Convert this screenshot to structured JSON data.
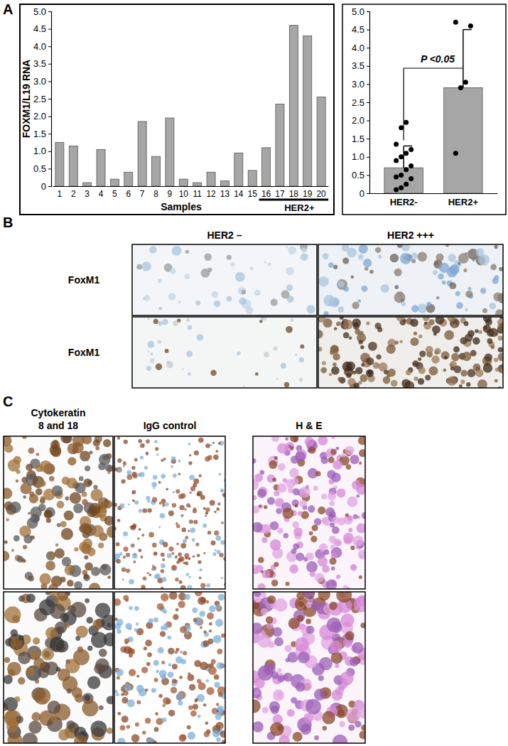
{
  "chart_data": [
    {
      "type": "bar",
      "y_label": "FOXM1/L19 RNA",
      "x_label": "Samples",
      "categories": [
        "1",
        "2",
        "3",
        "4",
        "5",
        "6",
        "7",
        "8",
        "9",
        "10",
        "11",
        "12",
        "13",
        "14",
        "15",
        "16",
        "17",
        "18",
        "19",
        "20"
      ],
      "values": [
        1.25,
        1.15,
        0.1,
        1.05,
        0.2,
        0.4,
        1.85,
        0.85,
        1.95,
        0.2,
        0.1,
        0.4,
        0.15,
        0.95,
        0.45,
        1.1,
        2.35,
        4.6,
        4.3,
        2.55
      ],
      "color": "#a6a6a6",
      "ylim": [
        0,
        5
      ],
      "yticks": [
        0,
        0.5,
        {
          "value": 1,
          "label": "1.0"
        },
        1.5,
        {
          "value": 2,
          "label": "2.0"
        },
        2.5,
        {
          "value": 3,
          "label": "3.0"
        },
        3.5,
        {
          "value": 4,
          "label": "4.0"
        },
        4.5,
        {
          "value": 5,
          "label": "5.0"
        }
      ],
      "annotations": [
        {
          "text": "HER2+",
          "from": "16",
          "to": "20"
        }
      ]
    },
    {
      "type": "bar",
      "categories": [
        "HER2-",
        "HER2+"
      ],
      "values": [
        0.7,
        2.9
      ],
      "errors": [
        0.6,
        1.6
      ],
      "points": [
        [
          0.1,
          0.15,
          0.25,
          0.4,
          0.45,
          0.5,
          0.65,
          0.75,
          0.9,
          1.0,
          1.1,
          1.2,
          1.35,
          1.8,
          1.95
        ],
        [
          1.1,
          2.9,
          3.05,
          4.6,
          4.7
        ]
      ],
      "color": "#a6a6a6",
      "ylim": [
        0,
        5
      ],
      "yticks": [
        0,
        0.5,
        {
          "value": 1,
          "label": "1.0"
        },
        1.5,
        {
          "value": 2,
          "label": "2.0"
        },
        2.5,
        {
          "value": 3,
          "label": "3.0"
        },
        3.5,
        {
          "value": 4,
          "label": "4.0"
        },
        4.5,
        {
          "value": 5,
          "label": "5.0"
        }
      ],
      "annotations": [
        {
          "text": "P <0.05",
          "from": "HER2-",
          "to": "HER2+"
        }
      ]
    }
  ],
  "panels": {
    "labels": [
      "A",
      "B",
      "C"
    ],
    "B": {
      "columns": [
        "HER2 –",
        "HER2 +++"
      ],
      "rows": [
        "FoxM1",
        "FoxM1"
      ]
    },
    "C": {
      "columns": [
        {
          "lines": [
            "Cytokeratin",
            "8 and 18"
          ]
        },
        {
          "lines": [
            "IgG control"
          ]
        },
        {
          "lines": [
            "H & E"
          ]
        }
      ]
    }
  }
}
